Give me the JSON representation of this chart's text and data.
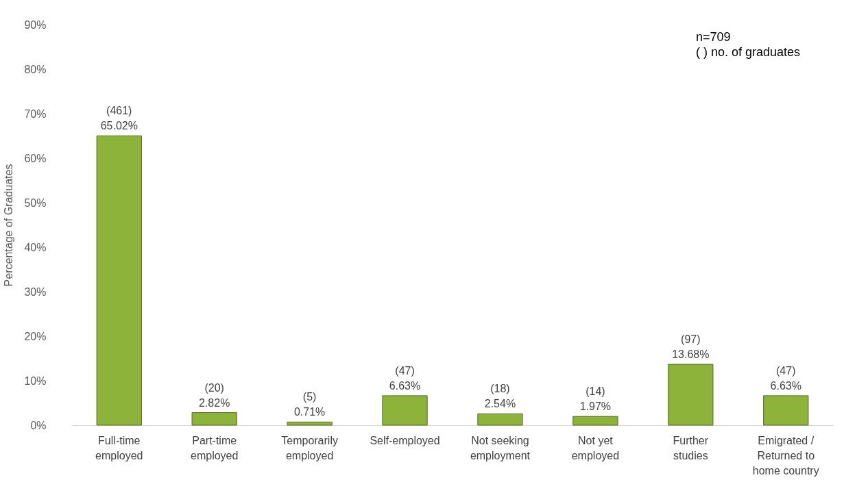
{
  "chart_data": {
    "type": "bar",
    "ylabel": "Percentage of Graduates",
    "categories": [
      "Full-time\nemployed",
      "Part-time\nemployed",
      "Temporarily\nemployed",
      "Self-employed",
      "Not seeking\nemployment",
      "Not yet\nemployed",
      "Further\nstudies",
      "Emigrated /\nReturned to\nhome country"
    ],
    "values": [
      65.02,
      2.82,
      0.71,
      6.63,
      2.54,
      1.97,
      13.68,
      6.63
    ],
    "value_labels": [
      "(461)\n65.02%",
      "(20)\n2.82%",
      "(5)\n0.71%",
      "(47)\n6.63%",
      "(18)\n2.54%",
      "(14)\n1.97%",
      "(97)\n13.68%",
      "(47)\n6.63%"
    ],
    "color": "#8db33a",
    "ylim": [
      0,
      90
    ],
    "yticks": [
      {
        "value": 0,
        "label": "0%"
      },
      {
        "value": 10,
        "label": "10%"
      },
      {
        "value": 20,
        "label": "20%"
      },
      {
        "value": 30,
        "label": "30%"
      },
      {
        "value": 40,
        "label": "40%"
      },
      {
        "value": 50,
        "label": "50%"
      },
      {
        "value": 60,
        "label": "60%"
      },
      {
        "value": 70,
        "label": "70%"
      },
      {
        "value": 80,
        "label": "80%"
      },
      {
        "value": 90,
        "label": "90%"
      }
    ],
    "grid": false,
    "annotations": [
      "n=709",
      "( ) no. of graduates"
    ]
  }
}
